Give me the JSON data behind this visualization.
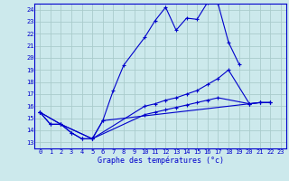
{
  "title": "Graphe des températures (°c)",
  "bg_color": "#cce9ec",
  "grid_color": "#aacccc",
  "line_color": "#0000cc",
  "xlim": [
    -0.5,
    23.5
  ],
  "ylim": [
    12.5,
    24.5
  ],
  "xticks": [
    0,
    1,
    2,
    3,
    4,
    5,
    6,
    7,
    8,
    9,
    10,
    11,
    12,
    13,
    14,
    15,
    16,
    17,
    18,
    19,
    20,
    21,
    22,
    23
  ],
  "yticks": [
    13,
    14,
    15,
    16,
    17,
    18,
    19,
    20,
    21,
    22,
    23,
    24
  ],
  "series": [
    {
      "x": [
        0,
        1,
        2,
        3,
        4,
        5,
        6,
        7,
        8,
        10,
        11,
        12,
        13,
        14,
        15,
        16,
        17,
        18,
        19
      ],
      "y": [
        15.5,
        14.5,
        14.5,
        13.8,
        13.3,
        13.3,
        14.8,
        17.3,
        19.4,
        21.7,
        23.1,
        24.2,
        22.3,
        23.3,
        23.2,
        24.6,
        24.5,
        21.3,
        19.5
      ]
    },
    {
      "x": [
        0,
        1,
        2,
        3,
        4,
        5,
        6,
        20,
        21,
        22
      ],
      "y": [
        15.5,
        14.5,
        14.5,
        13.8,
        13.3,
        13.3,
        14.8,
        16.2,
        16.3,
        16.3
      ]
    },
    {
      "x": [
        0,
        2,
        5,
        10,
        11,
        12,
        13,
        14,
        15,
        16,
        17,
        18,
        20,
        21,
        22
      ],
      "y": [
        15.5,
        14.5,
        13.3,
        16.0,
        16.2,
        16.5,
        16.7,
        17.0,
        17.3,
        17.8,
        18.3,
        19.0,
        16.2,
        16.3,
        16.3
      ]
    },
    {
      "x": [
        0,
        2,
        5,
        10,
        11,
        12,
        13,
        14,
        15,
        16,
        17,
        20,
        21,
        22
      ],
      "y": [
        15.5,
        14.5,
        13.3,
        15.3,
        15.5,
        15.7,
        15.9,
        16.1,
        16.3,
        16.5,
        16.7,
        16.2,
        16.3,
        16.3
      ]
    }
  ]
}
